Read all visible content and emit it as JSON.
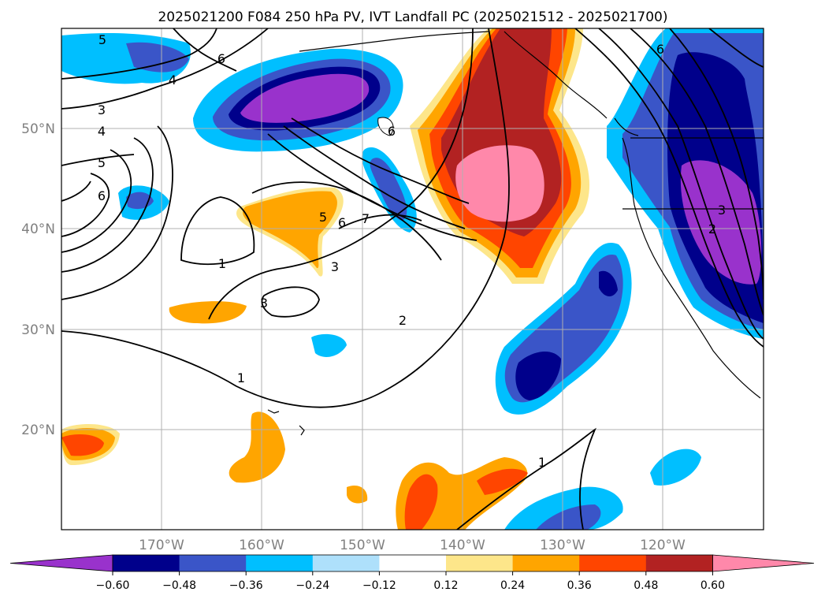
{
  "title": "2025021200 F084 250 hPa PV, IVT Landfall PC (2025021512 - 2025021700)",
  "map": {
    "lon_labels": [
      "170°W",
      "160°W",
      "150°W",
      "140°W",
      "130°W",
      "120°W"
    ],
    "lat_labels": [
      "50°N",
      "40°N",
      "30°N",
      "20°N"
    ],
    "contour_labels": [
      "5",
      "6",
      "4",
      "3",
      "4",
      "5",
      "6",
      "6",
      "7",
      "5",
      "6",
      "3",
      "1",
      "3",
      "2",
      "1",
      "1",
      "6",
      "3",
      "2"
    ]
  },
  "colorbar": {
    "ticks": [
      "−0.60",
      "−0.48",
      "−0.36",
      "−0.24",
      "−0.12",
      "0.12",
      "0.24",
      "0.36",
      "0.48",
      "0.60"
    ],
    "colors": [
      "#9932cc",
      "#00008b",
      "#3a55c8",
      "#00bfff",
      "#aee0fb",
      "#ffffff",
      "#fde68a",
      "#ffa500",
      "#ff4500",
      "#b22222",
      "#ff88aa"
    ]
  }
}
